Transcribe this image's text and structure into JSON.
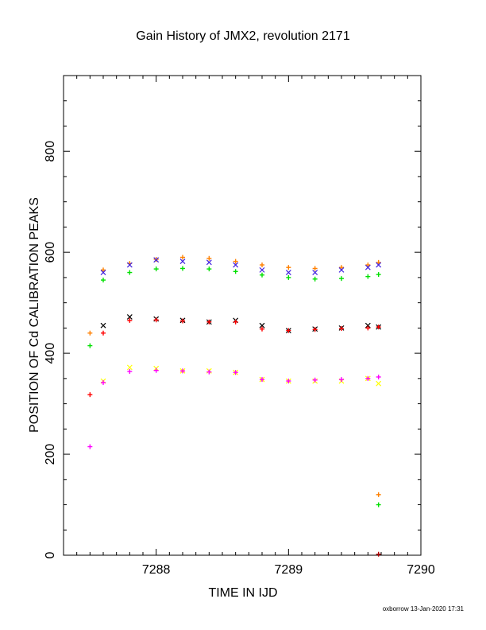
{
  "chart_data": {
    "type": "scatter",
    "title": "Gain History of JMX2, revolution 2171",
    "xlabel": "TIME IN IJD",
    "ylabel": "POSITION OF Cd CALIBRATION PEAKS",
    "xlim": [
      7287.3,
      7290
    ],
    "ylim": [
      0,
      950
    ],
    "x_ticks": [
      7288,
      7289,
      7290
    ],
    "y_ticks": [
      0,
      200,
      400,
      600,
      800
    ],
    "grid": false,
    "legend": "none",
    "colors": {
      "orange": "#ff8000",
      "blue": "#4020e0",
      "green": "#00e000",
      "black": "#000000",
      "red": "#ff0000",
      "yellow": "#ffff00",
      "magenta": "#ff00ff",
      "darkred": "#b00000"
    },
    "series": [
      {
        "color_key": "orange",
        "marker": "plus",
        "x": [
          7287.5,
          7287.6,
          7287.8,
          7288.0,
          7288.2,
          7288.4,
          7288.6,
          7288.8,
          7289.0,
          7289.2,
          7289.4,
          7289.6,
          7289.68
        ],
        "y": [
          440,
          565,
          578,
          586,
          590,
          588,
          582,
          575,
          570,
          568,
          570,
          575,
          580
        ]
      },
      {
        "color_key": "blue",
        "marker": "cross",
        "x": [
          7287.6,
          7287.8,
          7288.0,
          7288.2,
          7288.4,
          7288.6,
          7288.8,
          7289.0,
          7289.2,
          7289.4,
          7289.6,
          7289.68
        ],
        "y": [
          560,
          575,
          585,
          582,
          580,
          575,
          565,
          560,
          560,
          565,
          570,
          575
        ]
      },
      {
        "color_key": "green",
        "marker": "plus",
        "x": [
          7287.5,
          7287.6,
          7287.8,
          7288.0,
          7288.2,
          7288.4,
          7288.6,
          7288.8,
          7289.0,
          7289.2,
          7289.4,
          7289.6,
          7289.68,
          7289.68
        ],
        "y": [
          415,
          545,
          560,
          567,
          568,
          567,
          562,
          555,
          550,
          547,
          548,
          552,
          556,
          100
        ]
      },
      {
        "color_key": "black",
        "marker": "cross",
        "x": [
          7287.6,
          7287.8,
          7288.0,
          7288.2,
          7288.4,
          7288.6,
          7288.8,
          7289.0,
          7289.2,
          7289.4,
          7289.6,
          7289.68
        ],
        "y": [
          455,
          472,
          468,
          465,
          462,
          465,
          455,
          445,
          448,
          450,
          455,
          452
        ]
      },
      {
        "color_key": "red",
        "marker": "plus",
        "x": [
          7287.5,
          7287.6,
          7287.8,
          7288.0,
          7288.2,
          7288.4,
          7288.6,
          7288.8,
          7289.0,
          7289.2,
          7289.4,
          7289.6,
          7289.68
        ],
        "y": [
          318,
          440,
          465,
          466,
          464,
          462,
          462,
          448,
          445,
          447,
          449,
          450,
          452
        ]
      },
      {
        "color_key": "yellow",
        "marker": "cross",
        "x": [
          7287.6,
          7287.8,
          7288.0,
          7288.2,
          7288.4,
          7288.6,
          7288.8,
          7289.0,
          7289.2,
          7289.4,
          7289.6,
          7289.68
        ],
        "y": [
          345,
          372,
          370,
          365,
          365,
          362,
          348,
          345,
          345,
          345,
          350,
          340
        ]
      },
      {
        "color_key": "magenta",
        "marker": "plus",
        "x": [
          7287.5,
          7287.6,
          7287.8,
          7288.0,
          7288.2,
          7288.4,
          7288.6,
          7288.8,
          7289.0,
          7289.2,
          7289.4,
          7289.6,
          7289.68
        ],
        "y": [
          215,
          342,
          364,
          366,
          365,
          363,
          362,
          348,
          345,
          347,
          348,
          350,
          353
        ]
      }
    ],
    "outliers": [
      {
        "color_key": "orange",
        "x": 7289.68,
        "y": 120
      },
      {
        "color_key": "darkred",
        "x": 7289.68,
        "y": 2
      }
    ]
  },
  "footer": "oxborrow 13-Jan-2020 17:31"
}
